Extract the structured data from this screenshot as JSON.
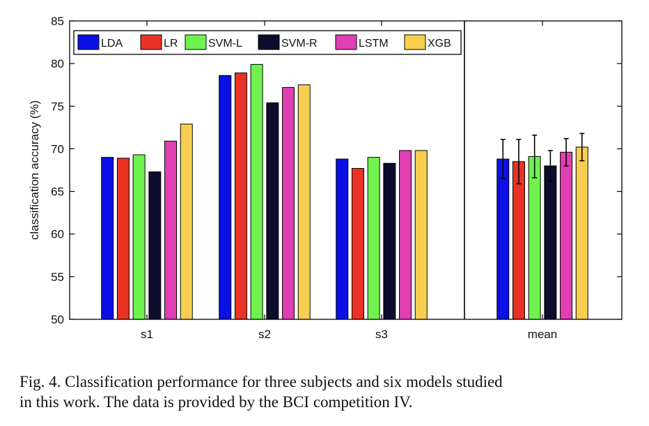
{
  "chart_data": {
    "type": "bar",
    "ylabel": "classification accuracy (%)",
    "ylim": [
      50,
      85
    ],
    "yticks": [
      50,
      55,
      60,
      65,
      70,
      75,
      80,
      85
    ],
    "categories": [
      "s1",
      "s2",
      "s3",
      "mean"
    ],
    "series": [
      {
        "name": "LDA",
        "color": "#0a10e6",
        "values": [
          69.0,
          78.6,
          68.8,
          68.8
        ],
        "error": [
          null,
          null,
          null,
          2.3
        ]
      },
      {
        "name": "LR",
        "color": "#e83324",
        "values": [
          68.9,
          78.9,
          67.7,
          68.5
        ],
        "error": [
          null,
          null,
          null,
          2.6
        ]
      },
      {
        "name": "SVM-L",
        "color": "#6ff24e",
        "values": [
          69.3,
          79.9,
          69.0,
          69.1
        ],
        "error": [
          null,
          null,
          null,
          2.5
        ]
      },
      {
        "name": "SVM-R",
        "color": "#0c0d2e",
        "values": [
          67.3,
          75.4,
          68.3,
          68.0
        ],
        "error": [
          null,
          null,
          null,
          1.8
        ]
      },
      {
        "name": "LSTM",
        "color": "#e03fb4",
        "values": [
          70.9,
          77.2,
          69.8,
          69.6
        ],
        "error": [
          null,
          null,
          null,
          1.6
        ]
      },
      {
        "name": "XGB",
        "color": "#f7cf4f",
        "values": [
          72.9,
          77.5,
          69.8,
          70.2
        ],
        "error": [
          null,
          null,
          null,
          1.6
        ]
      }
    ],
    "legend_position": "top-left",
    "grid": false
  },
  "caption": {
    "line1": "Fig. 4.  Classification performance for three subjects and six models studied",
    "line2": "in this work. The data is provided by the BCI competition IV."
  }
}
